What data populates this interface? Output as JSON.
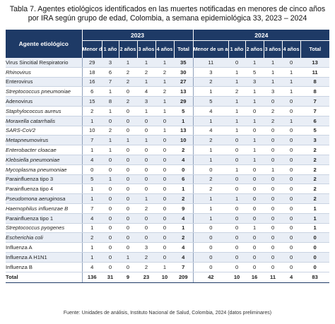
{
  "caption": "Tabla 7.  Agentes etiológicos identificados en las muertes notificadas en menores de cinco años por IRA según grupo de edad, Colombia, a semana epidemiológica 33, 2023 – 2024",
  "source": "Fuente: Unidades de análisis, Instituto Nacional de Salud, Colombia, 2024 (datos preliminares)",
  "header": {
    "agent": "Agente etiológico",
    "year_2023": "2023",
    "year_2024": "2024",
    "cols": [
      "Menor de un año",
      "1 año",
      "2 años",
      "3 años",
      "4 años",
      "Total"
    ]
  },
  "rows": [
    {
      "agent": "Virus Sincitial Respiratorio",
      "italic": false,
      "y2023": [
        "29",
        "3",
        "1",
        "1",
        "1",
        "35"
      ],
      "y2024": [
        "11",
        "0",
        "1",
        "1",
        "0",
        "13"
      ]
    },
    {
      "agent": "Rhinovirus",
      "italic": true,
      "y2023": [
        "18",
        "6",
        "2",
        "2",
        "2",
        "30"
      ],
      "y2024": [
        "3",
        "1",
        "5",
        "1",
        "1",
        "11"
      ]
    },
    {
      "agent": "Enterovirus",
      "italic": false,
      "y2023": [
        "16",
        "7",
        "2",
        "1",
        "1",
        "27"
      ],
      "y2024": [
        "2",
        "1",
        "3",
        "1",
        "1",
        "8"
      ]
    },
    {
      "agent": "Streptococcus pneumoniae",
      "italic": true,
      "y2023": [
        "6",
        "1",
        "0",
        "4",
        "2",
        "13"
      ],
      "y2024": [
        "1",
        "2",
        "1",
        "3",
        "1",
        "8"
      ]
    },
    {
      "agent": "Adenovirus",
      "italic": false,
      "y2023": [
        "15",
        "8",
        "2",
        "3",
        "1",
        "29"
      ],
      "y2024": [
        "5",
        "1",
        "1",
        "0",
        "0",
        "7"
      ]
    },
    {
      "agent": "Staphylococcus aureus",
      "italic": true,
      "y2023": [
        "2",
        "1",
        "0",
        "1",
        "1",
        "5"
      ],
      "y2024": [
        "4",
        "1",
        "0",
        "2",
        "0",
        "7"
      ]
    },
    {
      "agent": "Moraxella catarrhalis",
      "italic": true,
      "y2023": [
        "1",
        "0",
        "0",
        "0",
        "0",
        "1"
      ],
      "y2024": [
        "1",
        "1",
        "1",
        "2",
        "1",
        "6"
      ]
    },
    {
      "agent": "SARS-CoV2",
      "italic": true,
      "y2023": [
        "10",
        "2",
        "0",
        "0",
        "1",
        "13"
      ],
      "y2024": [
        "4",
        "1",
        "0",
        "0",
        "0",
        "5"
      ]
    },
    {
      "agent": "Metapneumovirus",
      "italic": true,
      "y2023": [
        "7",
        "1",
        "1",
        "1",
        "0",
        "10"
      ],
      "y2024": [
        "2",
        "0",
        "1",
        "0",
        "0",
        "3"
      ]
    },
    {
      "agent": "Enterobacter cloacae",
      "italic": true,
      "y2023": [
        "1",
        "1",
        "0",
        "0",
        "0",
        "2"
      ],
      "y2024": [
        "1",
        "0",
        "1",
        "0",
        "0",
        "2"
      ]
    },
    {
      "agent": "Klebsiella pneumoniae",
      "italic": true,
      "y2023": [
        "4",
        "0",
        "0",
        "0",
        "0",
        "4"
      ],
      "y2024": [
        "1",
        "0",
        "1",
        "0",
        "0",
        "2"
      ]
    },
    {
      "agent": "Mycoplasma pneumoniae",
      "italic": true,
      "y2023": [
        "0",
        "0",
        "0",
        "0",
        "0",
        "0"
      ],
      "y2024": [
        "0",
        "1",
        "0",
        "1",
        "0",
        "2"
      ]
    },
    {
      "agent": "Parainfluenza tipo 3",
      "italic": false,
      "y2023": [
        "5",
        "1",
        "0",
        "0",
        "0",
        "6"
      ],
      "y2024": [
        "2",
        "0",
        "0",
        "0",
        "0",
        "2"
      ]
    },
    {
      "agent": "Parainfluenza tipo 4",
      "italic": false,
      "y2023": [
        "1",
        "0",
        "0",
        "0",
        "0",
        "1"
      ],
      "y2024": [
        "2",
        "0",
        "0",
        "0",
        "0",
        "2"
      ]
    },
    {
      "agent": "Pseudomona aeruginosa",
      "italic": true,
      "y2023": [
        "1",
        "0",
        "0",
        "1",
        "0",
        "2"
      ],
      "y2024": [
        "1",
        "1",
        "0",
        "0",
        "0",
        "2"
      ]
    },
    {
      "agent": "Haemophilus influenzae B",
      "italic": true,
      "y2023": [
        "7",
        "0",
        "0",
        "2",
        "0",
        "9"
      ],
      "y2024": [
        "1",
        "0",
        "0",
        "0",
        "0",
        "1"
      ]
    },
    {
      "agent": "Parainfluenza tipo 1",
      "italic": false,
      "y2023": [
        "4",
        "0",
        "0",
        "0",
        "0",
        "4"
      ],
      "y2024": [
        "1",
        "0",
        "0",
        "0",
        "0",
        "1"
      ]
    },
    {
      "agent": "Streptococcus pyogenes",
      "italic": true,
      "y2023": [
        "1",
        "0",
        "0",
        "0",
        "0",
        "1"
      ],
      "y2024": [
        "0",
        "0",
        "1",
        "0",
        "0",
        "1"
      ]
    },
    {
      "agent": "Escherichia coli",
      "italic": true,
      "y2023": [
        "2",
        "0",
        "0",
        "0",
        "0",
        "2"
      ],
      "y2024": [
        "0",
        "0",
        "0",
        "0",
        "0",
        "0"
      ]
    },
    {
      "agent": "Influenza A",
      "italic": false,
      "y2023": [
        "1",
        "0",
        "0",
        "3",
        "0",
        "4"
      ],
      "y2024": [
        "0",
        "0",
        "0",
        "0",
        "0",
        "0"
      ]
    },
    {
      "agent": "Influenza A H1N1",
      "italic": false,
      "y2023": [
        "1",
        "0",
        "1",
        "2",
        "0",
        "4"
      ],
      "y2024": [
        "0",
        "0",
        "0",
        "0",
        "0",
        "0"
      ]
    },
    {
      "agent": "Influenza B",
      "italic": false,
      "y2023": [
        "4",
        "0",
        "0",
        "2",
        "1",
        "7"
      ],
      "y2024": [
        "0",
        "0",
        "0",
        "0",
        "0",
        "0"
      ]
    }
  ],
  "total": {
    "label": "Total",
    "y2023": [
      "136",
      "31",
      "9",
      "23",
      "10",
      "209"
    ],
    "y2024": [
      "42",
      "10",
      "16",
      "11",
      "4",
      "83"
    ]
  }
}
